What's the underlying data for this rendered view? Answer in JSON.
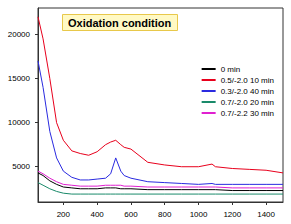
{
  "chart_data": {
    "type": "line",
    "title": "Oxidation condition",
    "x": [
      50,
      80,
      120,
      160,
      200,
      250,
      300,
      350,
      400,
      450,
      480,
      510,
      540,
      560,
      600,
      700,
      800,
      900,
      1000,
      1080,
      1100,
      1200,
      1300,
      1400,
      1500
    ],
    "series": [
      {
        "name": "0 min",
        "color": "#000000",
        "values": [
          4300,
          4000,
          3400,
          3000,
          2700,
          2600,
          2500,
          2500,
          2500,
          2600,
          2600,
          2600,
          2500,
          2500,
          2500,
          2400,
          2400,
          2400,
          2400,
          2400,
          2400,
          2300,
          2300,
          2300,
          2300
        ]
      },
      {
        "name": "0.5/-2.0 10 min",
        "color": "#e8001c",
        "values": [
          22000,
          19500,
          15000,
          10000,
          8000,
          6800,
          6500,
          6300,
          6700,
          7500,
          7800,
          8000,
          7500,
          7200,
          7000,
          5500,
          5200,
          5000,
          5000,
          5300,
          5000,
          4800,
          4700,
          4600,
          4300
        ]
      },
      {
        "name": "0.3/-2.0 40 min",
        "color": "#2a2ae0",
        "values": [
          17000,
          14000,
          9000,
          6000,
          4500,
          3800,
          3500,
          3500,
          3600,
          3700,
          4200,
          6000,
          4500,
          4000,
          3700,
          3300,
          3200,
          3100,
          3000,
          3100,
          3000,
          3000,
          3000,
          3000,
          3000
        ]
      },
      {
        "name": "0.7/-2.0 20 min",
        "color": "#1a8a6a",
        "values": [
          3200,
          2900,
          2500,
          2200,
          2000,
          1900,
          1900,
          1900,
          1900,
          1900,
          1900,
          1900,
          1900,
          1900,
          1900,
          1900,
          1900,
          1900,
          1900,
          1900,
          1900,
          1900,
          1900,
          1900,
          1900
        ]
      },
      {
        "name": "0.7/-2.2 30 min",
        "color": "#e020d0",
        "values": [
          4500,
          4200,
          3700,
          3300,
          3000,
          2900,
          2800,
          2800,
          2800,
          2900,
          2900,
          2900,
          2900,
          2800,
          2800,
          2700,
          2700,
          2700,
          2700,
          2700,
          2700,
          2600,
          2600,
          2600,
          2600
        ]
      }
    ],
    "xlim": [
      50,
      1500
    ],
    "xticks": [
      200,
      400,
      600,
      800,
      1000,
      1200,
      1400
    ],
    "ylim": [
      1000,
      23000
    ],
    "yticks": [
      5000,
      10000,
      15000,
      20000
    ],
    "grid": false,
    "legend": "upper right"
  }
}
